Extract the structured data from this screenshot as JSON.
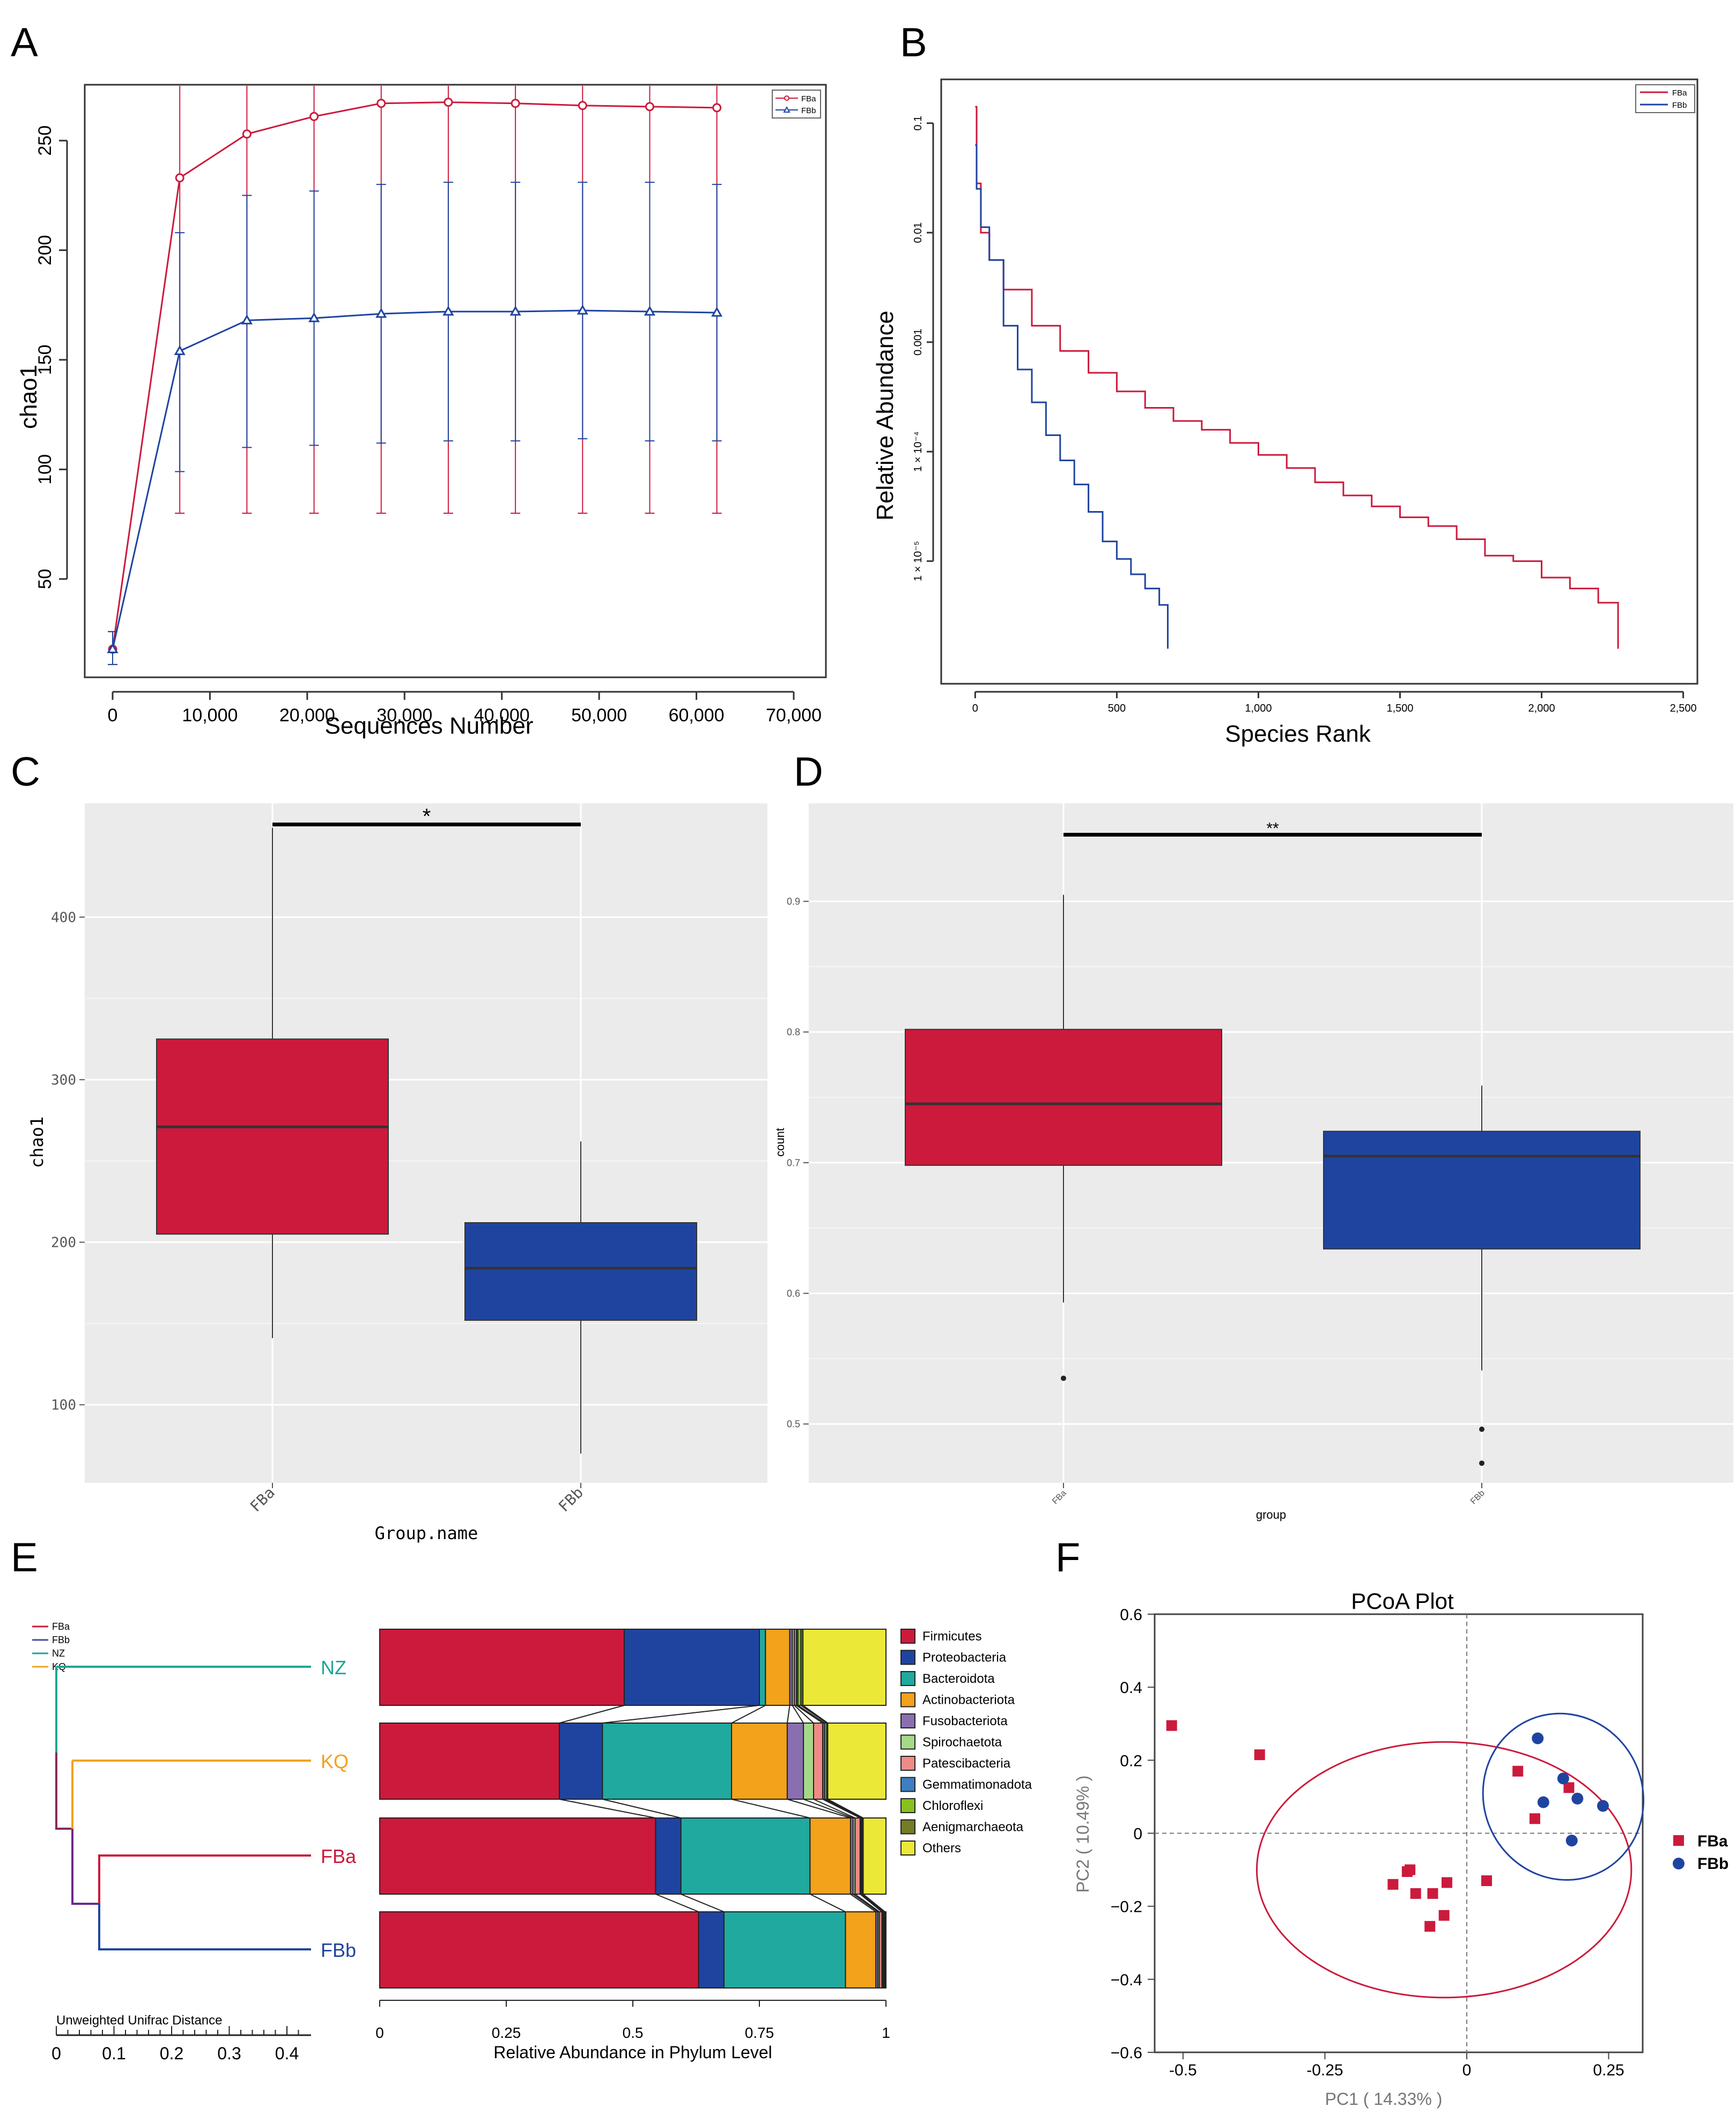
{
  "panel_labels": {
    "a": "A",
    "b": "B",
    "c": "C",
    "d": "D",
    "e": "E",
    "f": "F"
  },
  "colors": {
    "fba": "#cc1a3c",
    "fbb": "#1f44a0",
    "nz": "#1fa596",
    "kq": "#f2a21b"
  },
  "chart_data": [
    {
      "id": "A",
      "type": "line",
      "title": "",
      "xlabel": "Sequences Number",
      "ylabel": "chao1",
      "xlim": [
        0,
        70000
      ],
      "ylim": [
        12,
        275
      ],
      "xticks": [
        0,
        10000,
        20000,
        30000,
        40000,
        50000,
        60000,
        70000
      ],
      "xtick_labels": [
        "0",
        "10,000",
        "20,000",
        "30,000",
        "40,000",
        "50,000",
        "60,000",
        "70,000"
      ],
      "yticks": [
        50,
        100,
        150,
        200,
        250
      ],
      "ytick_labels": [
        "50",
        "100",
        "150",
        "200",
        "250"
      ],
      "x": [
        0,
        6900,
        13800,
        20700,
        27600,
        34500,
        41400,
        48300,
        55200,
        62100
      ],
      "legend": "top-right",
      "series": [
        {
          "name": "FBa",
          "color": "#cc1a3c",
          "marker": "circle",
          "values": [
            18,
            233,
            253,
            261,
            267,
            267.5,
            267,
            266,
            265.5,
            265
          ],
          "err_low": [
            11,
            80,
            80,
            80,
            80,
            80,
            80,
            80,
            80,
            80
          ],
          "err_high": [
            26,
            275,
            275,
            275,
            275,
            275,
            275,
            275,
            275,
            275
          ]
        },
        {
          "name": "FBb",
          "color": "#1f44a0",
          "marker": "triangle",
          "values": [
            18,
            154,
            168,
            169,
            171,
            172,
            172,
            172.5,
            172,
            171.5
          ],
          "err_low": [
            11,
            99,
            110,
            111,
            112,
            113,
            113,
            114,
            113,
            113
          ],
          "err_high": [
            26,
            208,
            225,
            227,
            230,
            231,
            231,
            231,
            231,
            230
          ]
        }
      ]
    },
    {
      "id": "B",
      "type": "line",
      "title": "",
      "xlabel": "Species Rank",
      "ylabel": "Relative Abundance",
      "xscale": "linear",
      "yscale": "log",
      "xlim": [
        -120,
        2550
      ],
      "ylim_log10": [
        -6.12,
        -0.6
      ],
      "xticks": [
        0,
        500,
        1000,
        1500,
        2000,
        2500
      ],
      "xtick_labels": [
        "0",
        "500",
        "1,000",
        "1,500",
        "2,000",
        "2,500"
      ],
      "yticks_log10": [
        -1,
        -2,
        -3,
        -4,
        -5
      ],
      "ytick_labels": [
        "0.1",
        "0.01",
        "0.001",
        "1 × 10⁻⁴",
        "1 × 10⁻⁵"
      ],
      "legend": "top-right",
      "series": [
        {
          "name": "FBa",
          "color": "#cc1a3c",
          "x": [
            0,
            5,
            20,
            50,
            100,
            200,
            300,
            400,
            500,
            600,
            700,
            800,
            900,
            1000,
            1100,
            1200,
            1300,
            1400,
            1500,
            1600,
            1700,
            1800,
            1900,
            2000,
            2100,
            2200,
            2270,
            2270
          ],
          "log10_y": [
            -0.85,
            -1.55,
            -2.0,
            -2.25,
            -2.52,
            -2.85,
            -3.08,
            -3.28,
            -3.45,
            -3.6,
            -3.72,
            -3.8,
            -3.92,
            -4.03,
            -4.15,
            -4.28,
            -4.4,
            -4.5,
            -4.6,
            -4.68,
            -4.8,
            -4.95,
            -5.0,
            -5.15,
            -5.25,
            -5.38,
            -5.38,
            -5.8
          ]
        },
        {
          "name": "FBb",
          "color": "#1f44a0",
          "x": [
            0,
            5,
            20,
            50,
            100,
            150,
            200,
            250,
            300,
            350,
            400,
            450,
            500,
            550,
            600,
            650,
            680,
            680
          ],
          "log10_y": [
            -1.2,
            -1.6,
            -1.95,
            -2.25,
            -2.85,
            -3.25,
            -3.55,
            -3.85,
            -4.08,
            -4.3,
            -4.55,
            -4.82,
            -4.98,
            -5.12,
            -5.25,
            -5.4,
            -5.4,
            -5.8
          ]
        }
      ]
    },
    {
      "id": "C",
      "type": "box",
      "xlabel": "Group.name",
      "ylabel": "chao1",
      "ylim": [
        52,
        470
      ],
      "yticks": [
        100,
        200,
        300,
        400
      ],
      "ytick_labels": [
        "100",
        "200",
        "300",
        "400"
      ],
      "categories": [
        "FBa",
        "FBb"
      ],
      "boxes": [
        {
          "group": "FBa",
          "color": "#cc1a3c",
          "min": 141,
          "q1": 205,
          "median": 271,
          "q3": 325,
          "max": 455,
          "outliers": []
        },
        {
          "group": "FBb",
          "color": "#1f44a0",
          "min": 70,
          "q1": 152,
          "median": 184,
          "q3": 212,
          "max": 262,
          "outliers": []
        }
      ],
      "significance": {
        "label": "*",
        "y": 457
      }
    },
    {
      "id": "D",
      "type": "box",
      "xlabel": "group",
      "ylabel": "count",
      "ylim": [
        0.455,
        0.975
      ],
      "yticks": [
        0.5,
        0.6,
        0.7,
        0.8,
        0.9
      ],
      "ytick_labels": [
        "0.5",
        "0.6",
        "0.7",
        "0.8",
        "0.9"
      ],
      "categories": [
        "FBa",
        "FBb"
      ],
      "boxes": [
        {
          "group": "FBa",
          "color": "#cc1a3c",
          "min": 0.593,
          "q1": 0.698,
          "median": 0.745,
          "q3": 0.802,
          "max": 0.905,
          "outliers": [
            0.535
          ]
        },
        {
          "group": "FBb",
          "color": "#1f44a0",
          "min": 0.541,
          "q1": 0.634,
          "median": 0.705,
          "q3": 0.724,
          "max": 0.759,
          "outliers": [
            0.496,
            0.47
          ]
        }
      ],
      "significance": {
        "label": "**",
        "y": 0.951
      }
    },
    {
      "id": "E",
      "type": "bar",
      "orientation": "horizontal",
      "stacked": true,
      "xlabel": "Relative Abundance in Phylum Level",
      "xlim": [
        0,
        1
      ],
      "xticks": [
        0,
        0.25,
        0.5,
        0.75,
        1
      ],
      "xtick_labels": [
        "0",
        "0.25",
        "0.5",
        "0.75",
        "1"
      ],
      "categories": [
        "NZ",
        "KQ",
        "FBa",
        "FBb"
      ],
      "series": [
        {
          "name": "Firmicutes",
          "color": "#cc1a3c",
          "values": [
            0.483,
            0.355,
            0.545,
            0.63
          ]
        },
        {
          "name": "Proteobacteria",
          "color": "#1f44a0",
          "values": [
            0.267,
            0.085,
            0.05,
            0.05
          ]
        },
        {
          "name": "Bacteroidota",
          "color": "#20a99f",
          "values": [
            0.012,
            0.255,
            0.255,
            0.24
          ]
        },
        {
          "name": "Actinobacteriota",
          "color": "#f2a21b",
          "values": [
            0.048,
            0.11,
            0.08,
            0.06
          ]
        },
        {
          "name": "Fusobacteriota",
          "color": "#8a6fb0",
          "values": [
            0.005,
            0.032,
            0.005,
            0.004
          ]
        },
        {
          "name": "Spirochaetota",
          "color": "#a6d88a",
          "values": [
            0.004,
            0.02,
            0.004,
            0.003
          ]
        },
        {
          "name": "Patescibacteria",
          "color": "#f08a86",
          "values": [
            0.004,
            0.018,
            0.01,
            0.005
          ]
        },
        {
          "name": "Gemmatimonadota",
          "color": "#3d7fc0",
          "values": [
            0.003,
            0.004,
            0.002,
            0.002
          ]
        },
        {
          "name": "Chloroflexi",
          "color": "#86c11e",
          "values": [
            0.006,
            0.004,
            0.002,
            0.002
          ]
        },
        {
          "name": "Aenigmarchaeota",
          "color": "#747c28",
          "values": [
            0.004,
            0.002,
            0.002,
            0.002
          ]
        },
        {
          "name": "Others",
          "color": "#ebe838",
          "values": [
            0.164,
            0.115,
            0.045,
            0.002
          ]
        }
      ],
      "dendrogram": {
        "xlabel": "Unweighted Unifrac Distance",
        "xlim": [
          0,
          0.45
        ],
        "xticks": [
          0,
          0.1,
          0.2,
          0.3,
          0.4
        ],
        "xtick_labels": [
          "0",
          "0.1",
          "0.2",
          "0.3",
          "0.4"
        ],
        "leaves": [
          "NZ",
          "KQ",
          "FBa",
          "FBb"
        ],
        "legend": [
          "FBa",
          "FBb",
          "NZ",
          "KQ"
        ]
      }
    },
    {
      "id": "F",
      "type": "scatter",
      "title": "PCoA Plot",
      "xlabel": "PC1 ( 14.33% )",
      "ylabel": "PC2 ( 10.49% )",
      "xlim": [
        -0.55,
        0.31
      ],
      "ylim": [
        -0.6,
        0.6
      ],
      "xticks": [
        -0.5,
        -0.25,
        0,
        0.25
      ],
      "xtick_labels": [
        "-0.5",
        "-0.25",
        "0",
        "0.25"
      ],
      "yticks": [
        -0.6,
        -0.4,
        -0.2,
        0,
        0.2,
        0.4,
        0.6
      ],
      "ytick_labels": [
        "−0.6",
        "−0.4",
        "−0.2",
        "0",
        "0.2",
        "0.4",
        "0.6"
      ],
      "legend": "right",
      "series": [
        {
          "name": "FBa",
          "marker": "square",
          "color": "#cc1a3c",
          "points": [
            [
              -0.52,
              0.295
            ],
            [
              -0.365,
              0.215
            ],
            [
              -0.13,
              -0.14
            ],
            [
              -0.105,
              -0.105
            ],
            [
              -0.1,
              -0.1
            ],
            [
              -0.09,
              -0.165
            ],
            [
              -0.06,
              -0.165
            ],
            [
              -0.065,
              -0.255
            ],
            [
              -0.04,
              -0.225
            ],
            [
              -0.035,
              -0.135
            ],
            [
              0.035,
              -0.13
            ],
            [
              0.09,
              0.17
            ],
            [
              0.12,
              0.04
            ],
            [
              0.18,
              0.125
            ]
          ],
          "ellipse": {
            "center": [
              -0.04,
              -0.1
            ],
            "rx": 0.33,
            "ry": 0.35,
            "rotation_deg": 0
          }
        },
        {
          "name": "FBb",
          "marker": "circle",
          "color": "#1f44a0",
          "points": [
            [
              0.125,
              0.26
            ],
            [
              0.135,
              0.085
            ],
            [
              0.17,
              0.15
            ],
            [
              0.195,
              0.095
            ],
            [
              0.185,
              -0.02
            ],
            [
              0.24,
              0.075
            ]
          ],
          "ellipse": {
            "center": [
              0.17,
              0.1
            ],
            "rx": 0.14,
            "ry": 0.23,
            "rotation_deg": -25
          }
        }
      ]
    }
  ]
}
